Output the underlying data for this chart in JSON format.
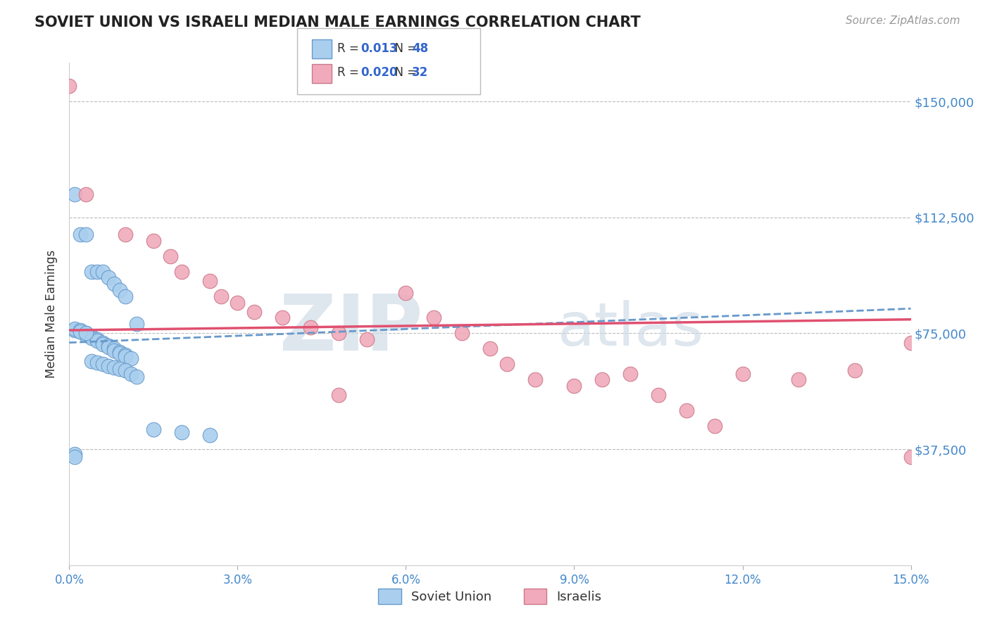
{
  "title": "SOVIET UNION VS ISRAELI MEDIAN MALE EARNINGS CORRELATION CHART",
  "source": "Source: ZipAtlas.com",
  "ylabel": "Median Male Earnings",
  "xlim": [
    0.0,
    0.15
  ],
  "ylim": [
    0,
    162500
  ],
  "yticks": [
    0,
    37500,
    75000,
    112500,
    150000
  ],
  "ytick_labels": [
    "",
    "$37,500",
    "$75,000",
    "$112,500",
    "$150,000"
  ],
  "xticks": [
    0.0,
    0.03,
    0.06,
    0.09,
    0.12,
    0.15
  ],
  "xtick_labels": [
    "0.0%",
    "3.0%",
    "6.0%",
    "9.0%",
    "12.0%",
    "15.0%"
  ],
  "blue_color": "#aacfee",
  "pink_color": "#f0aabb",
  "blue_edge": "#6699cc",
  "pink_edge": "#cc7788",
  "trend_blue_color": "#6699cc",
  "trend_pink_color": "#e05070",
  "legend_r_blue": "0.013",
  "legend_n_blue": "48",
  "legend_r_pink": "0.020",
  "legend_n_pink": "32",
  "legend_label_blue": "Soviet Union",
  "legend_label_pink": "Israelis",
  "grid_color": "#bbbbbb",
  "background_color": "#ffffff",
  "watermark_text": "ZIP",
  "watermark_text2": "atlas",
  "blue_trend_y0": 72000,
  "blue_trend_y1": 83000,
  "pink_trend_y0": 76000,
  "pink_trend_y1": 79500,
  "blue_x": [
    0.001,
    0.002,
    0.003,
    0.004,
    0.005,
    0.006,
    0.007,
    0.008,
    0.009,
    0.01,
    0.001,
    0.002,
    0.003,
    0.003,
    0.004,
    0.004,
    0.005,
    0.005,
    0.006,
    0.006,
    0.007,
    0.007,
    0.008,
    0.008,
    0.009,
    0.009,
    0.01,
    0.01,
    0.011,
    0.012,
    0.001,
    0.002,
    0.002,
    0.003,
    0.004,
    0.005,
    0.006,
    0.007,
    0.008,
    0.009,
    0.01,
    0.011,
    0.012,
    0.015,
    0.02,
    0.025,
    0.001,
    0.001
  ],
  "blue_y": [
    120000,
    107000,
    107000,
    95000,
    95000,
    95000,
    93000,
    91000,
    89000,
    87000,
    76000,
    75500,
    75000,
    74500,
    74000,
    73500,
    73000,
    72500,
    72000,
    71500,
    71000,
    70500,
    70000,
    69500,
    69000,
    68500,
    68000,
    67500,
    67000,
    78000,
    76500,
    76000,
    75500,
    75000,
    66000,
    65500,
    65000,
    64500,
    64000,
    63500,
    63000,
    62000,
    61000,
    44000,
    43000,
    42000,
    36000,
    35000
  ],
  "pink_x": [
    0.0,
    0.003,
    0.01,
    0.015,
    0.018,
    0.02,
    0.025,
    0.027,
    0.03,
    0.033,
    0.038,
    0.043,
    0.048,
    0.053,
    0.06,
    0.065,
    0.07,
    0.075,
    0.078,
    0.083,
    0.09,
    0.095,
    0.1,
    0.105,
    0.11,
    0.115,
    0.12,
    0.13,
    0.14,
    0.15,
    0.15,
    0.048
  ],
  "pink_y": [
    155000,
    120000,
    107000,
    105000,
    100000,
    95000,
    92000,
    87000,
    85000,
    82000,
    80000,
    77000,
    75000,
    73000,
    88000,
    80000,
    75000,
    70000,
    65000,
    60000,
    58000,
    60000,
    62000,
    55000,
    50000,
    45000,
    62000,
    60000,
    63000,
    72000,
    35000,
    55000
  ]
}
